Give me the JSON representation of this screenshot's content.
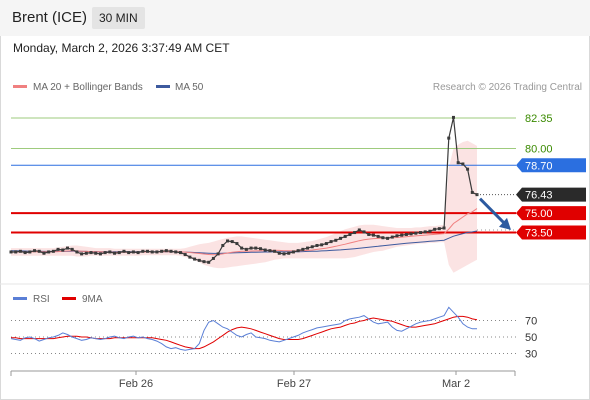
{
  "header": {
    "instrument": "Brent (ICE)",
    "timeframe": "30 MIN",
    "timestamp": "Monday, March 2, 2026 3:37:49 AM CET"
  },
  "legend": {
    "ma20_bb": "MA 20 + Bollinger Bands",
    "ma50": "MA 50",
    "credit": "Research © 2026 Trading Central"
  },
  "rsi_legend": {
    "rsi": "RSI",
    "ma9": "9MA"
  },
  "colors": {
    "price_line": "#3a3a3a",
    "ma20": "#f08080",
    "bollinger_fill": "#fbe3e3",
    "ma50": "#3d5a9e",
    "green_level": "#9ecb7d",
    "green_label": "#3a8a00",
    "blue_level": "#2b6fe0",
    "red_level": "#e00000",
    "current_tag": "#2a2a2a",
    "arrow": "#2c5aa0",
    "rsi_line": "#5a7fd6",
    "rsi_ma": "#e00000"
  },
  "chart_data": [
    {
      "type": "line",
      "title": "Brent (ICE)",
      "x_tick_labels": [
        "Feb 26",
        "Feb 27",
        "Mar 2"
      ],
      "y_range": [
        69.6,
        83.9
      ],
      "current_price": "76.43",
      "levels": [
        {
          "label": "82.35",
          "value": 82.35,
          "kind": "resistance",
          "color": "#3a8a00"
        },
        {
          "label": "80.00",
          "value": 80.0,
          "kind": "resistance",
          "color": "#3a8a00"
        },
        {
          "label": "78.70",
          "value": 78.7,
          "kind": "pivot",
          "color": "#2b6fe0"
        },
        {
          "label": "75.00",
          "value": 75.0,
          "kind": "support",
          "color": "#e00000"
        },
        {
          "label": "73.50",
          "value": 73.5,
          "kind": "support",
          "color": "#e00000"
        }
      ],
      "series": [
        {
          "name": "price",
          "values": [
            72.0,
            72.0,
            72.05,
            71.95,
            72.0,
            72.1,
            72.05,
            71.9,
            72.0,
            72.05,
            72.2,
            72.15,
            72.3,
            72.2,
            72.0,
            71.85,
            71.9,
            71.95,
            71.9,
            71.85,
            71.95,
            72.0,
            71.9,
            71.95,
            72.05,
            71.95,
            72.0,
            71.95,
            72.05,
            72.05,
            72.0,
            72.0,
            72.05,
            72.1,
            72.05,
            72.0,
            71.95,
            71.8,
            71.6,
            71.45,
            71.35,
            71.25,
            71.2,
            71.5,
            71.85,
            72.5,
            72.85,
            72.8,
            72.65,
            72.3,
            72.2,
            72.3,
            72.3,
            72.25,
            72.15,
            72.1,
            72.05,
            71.9,
            71.85,
            71.9,
            72.0,
            72.1,
            72.2,
            72.3,
            72.4,
            72.5,
            72.55,
            72.65,
            72.8,
            72.9,
            73.05,
            73.2,
            73.35,
            73.5,
            73.7,
            73.55,
            73.35,
            73.3,
            73.2,
            73.1,
            73.05,
            73.15,
            73.25,
            73.3,
            73.35,
            73.4,
            73.45,
            73.5,
            73.55,
            73.6,
            73.75,
            73.8,
            73.85,
            80.8,
            82.4,
            78.9,
            78.8,
            78.4,
            76.6,
            76.43
          ]
        },
        {
          "name": "MA 20",
          "values": [
            72.0,
            72.0,
            72.01,
            72.0,
            72.0,
            72.02,
            72.03,
            72.01,
            72.01,
            72.02,
            72.03,
            72.05,
            72.07,
            72.09,
            72.08,
            72.06,
            72.04,
            72.03,
            72.02,
            72.01,
            72.0,
            72.0,
            71.98,
            71.97,
            71.98,
            71.98,
            71.98,
            71.99,
            72.0,
            72.0,
            72.0,
            72.0,
            72.01,
            72.02,
            72.02,
            72.02,
            72.01,
            71.99,
            71.96,
            71.92,
            71.88,
            71.84,
            71.8,
            71.79,
            71.8,
            71.85,
            71.92,
            71.98,
            72.02,
            72.05,
            72.06,
            72.07,
            72.08,
            72.09,
            72.1,
            72.12,
            72.13,
            72.12,
            72.1,
            72.09,
            72.08,
            72.09,
            72.1,
            72.12,
            72.15,
            72.2,
            72.25,
            72.3,
            72.37,
            72.44,
            72.52,
            72.6,
            72.69,
            72.78,
            72.87,
            72.94,
            72.99,
            73.03,
            73.05,
            73.07,
            73.09,
            73.1,
            73.12,
            73.15,
            73.18,
            73.21,
            73.24,
            73.27,
            73.3,
            73.33,
            73.36,
            73.39,
            73.42,
            73.77,
            74.2,
            74.45,
            74.7,
            74.95,
            75.1,
            75.35
          ]
        },
        {
          "name": "MA 50",
          "values": [
            72.1,
            72.09,
            72.08,
            72.07,
            72.06,
            72.05,
            72.05,
            72.04,
            72.04,
            72.04,
            72.04,
            72.04,
            72.04,
            72.05,
            72.05,
            72.04,
            72.04,
            72.03,
            72.03,
            72.02,
            72.02,
            72.02,
            72.01,
            72.01,
            72.01,
            72.01,
            72.01,
            72.01,
            72.01,
            72.01,
            72.01,
            72.01,
            72.01,
            72.01,
            72.01,
            72.01,
            72.0,
            71.99,
            71.98,
            71.96,
            71.94,
            71.92,
            71.9,
            71.89,
            71.89,
            71.9,
            71.91,
            71.93,
            71.94,
            71.95,
            71.96,
            71.97,
            71.98,
            71.99,
            72.0,
            72.0,
            72.01,
            72.01,
            72.01,
            72.01,
            72.02,
            72.02,
            72.03,
            72.04,
            72.05,
            72.06,
            72.08,
            72.1,
            72.12,
            72.14,
            72.16,
            72.19,
            72.22,
            72.25,
            72.29,
            72.32,
            72.36,
            72.4,
            72.44,
            72.48,
            72.52,
            72.56,
            72.6,
            72.64,
            72.67,
            72.7,
            72.73,
            72.76,
            72.79,
            72.82,
            72.85,
            72.88,
            72.91,
            73.06,
            73.22,
            73.32,
            73.41,
            73.5,
            73.55,
            73.62
          ]
        },
        {
          "name": "BB upper",
          "values": [
            72.3,
            72.3,
            72.3,
            72.3,
            72.3,
            72.3,
            72.3,
            72.3,
            72.3,
            72.3,
            72.35,
            72.4,
            72.45,
            72.5,
            72.5,
            72.45,
            72.4,
            72.35,
            72.3,
            72.3,
            72.3,
            72.3,
            72.25,
            72.25,
            72.25,
            72.25,
            72.25,
            72.25,
            72.25,
            72.25,
            72.25,
            72.25,
            72.25,
            72.25,
            72.25,
            72.25,
            72.25,
            72.3,
            72.4,
            72.5,
            72.6,
            72.65,
            72.7,
            72.8,
            72.9,
            73.0,
            73.1,
            73.15,
            73.2,
            73.2,
            73.15,
            73.1,
            73.05,
            73.0,
            72.95,
            72.9,
            72.85,
            72.8,
            72.75,
            72.7,
            72.7,
            72.7,
            72.75,
            72.8,
            72.85,
            72.95,
            73.05,
            73.15,
            73.3,
            73.45,
            73.6,
            73.75,
            73.85,
            73.95,
            74.05,
            74.1,
            74.1,
            74.1,
            74.05,
            74.0,
            73.95,
            73.9,
            73.85,
            73.85,
            73.85,
            73.85,
            73.9,
            73.9,
            73.95,
            74.0,
            74.0,
            74.05,
            74.1,
            78.5,
            80.0,
            80.3,
            80.5,
            80.6,
            80.4,
            80.2
          ]
        },
        {
          "name": "BB lower",
          "values": [
            71.7,
            71.7,
            71.7,
            71.7,
            71.7,
            71.7,
            71.7,
            71.7,
            71.7,
            71.7,
            71.7,
            71.7,
            71.7,
            71.7,
            71.65,
            71.65,
            71.65,
            71.7,
            71.7,
            71.7,
            71.7,
            71.7,
            71.7,
            71.7,
            71.7,
            71.7,
            71.7,
            71.7,
            71.75,
            71.75,
            71.75,
            71.75,
            71.75,
            71.75,
            71.75,
            71.75,
            71.7,
            71.6,
            71.5,
            71.35,
            71.2,
            71.0,
            70.9,
            70.8,
            70.75,
            70.75,
            70.8,
            70.85,
            70.9,
            70.95,
            71.0,
            71.05,
            71.1,
            71.15,
            71.2,
            71.3,
            71.4,
            71.45,
            71.5,
            71.5,
            71.5,
            71.5,
            71.5,
            71.5,
            71.5,
            71.5,
            71.5,
            71.5,
            71.5,
            71.5,
            71.5,
            71.5,
            71.55,
            71.6,
            71.7,
            71.8,
            71.9,
            72.0,
            72.05,
            72.1,
            72.2,
            72.3,
            72.4,
            72.45,
            72.5,
            72.55,
            72.6,
            72.65,
            72.65,
            72.7,
            72.7,
            72.75,
            72.75,
            71.0,
            70.4,
            70.6,
            70.8,
            71.0,
            71.2,
            71.4
          ]
        }
      ]
    },
    {
      "type": "line",
      "title": "RSI",
      "y_tick_labels": [
        "70",
        "50",
        "30"
      ],
      "y_range": [
        10,
        90
      ],
      "series": [
        {
          "name": "RSI",
          "values": [
            48,
            47,
            46,
            49,
            50,
            48,
            45,
            47,
            49,
            50,
            52,
            55,
            53,
            50,
            48,
            46,
            47,
            49,
            48,
            47,
            48,
            50,
            51,
            49,
            48,
            50,
            51,
            49,
            50,
            48,
            47,
            45,
            42,
            38,
            36,
            37,
            35,
            34,
            35,
            36,
            42,
            58,
            68,
            70,
            66,
            62,
            60,
            56,
            52,
            50,
            53,
            55,
            50,
            49,
            48,
            46,
            45,
            44,
            46,
            48,
            50,
            52,
            55,
            57,
            59,
            61,
            62,
            63,
            64,
            65,
            66,
            70,
            72,
            73,
            74,
            76,
            72,
            68,
            66,
            67,
            68,
            62,
            58,
            57,
            60,
            63,
            66,
            68,
            69,
            70,
            72,
            74,
            76,
            86,
            80,
            74,
            66,
            62,
            60,
            60
          ]
        },
        {
          "name": "9MA",
          "values": [
            49,
            49,
            48,
            48,
            48,
            48,
            48,
            48,
            48,
            48,
            49,
            50,
            51,
            51,
            51,
            50,
            50,
            49,
            48,
            48,
            48,
            48,
            49,
            49,
            49,
            49,
            49,
            49,
            49,
            49,
            49,
            48,
            47,
            46,
            44,
            42,
            40,
            38,
            37,
            36,
            36,
            38,
            41,
            44,
            48,
            52,
            56,
            59,
            61,
            62,
            61,
            60,
            58,
            56,
            54,
            52,
            50,
            48,
            47,
            47,
            47,
            47,
            48,
            50,
            52,
            54,
            56,
            58,
            60,
            61,
            62,
            64,
            66,
            67,
            69,
            70,
            72,
            73,
            72,
            71,
            70,
            69,
            67,
            65,
            63,
            62,
            62,
            63,
            64,
            65,
            66,
            68,
            70,
            72,
            74,
            75,
            75,
            74,
            72,
            71
          ]
        }
      ]
    }
  ]
}
